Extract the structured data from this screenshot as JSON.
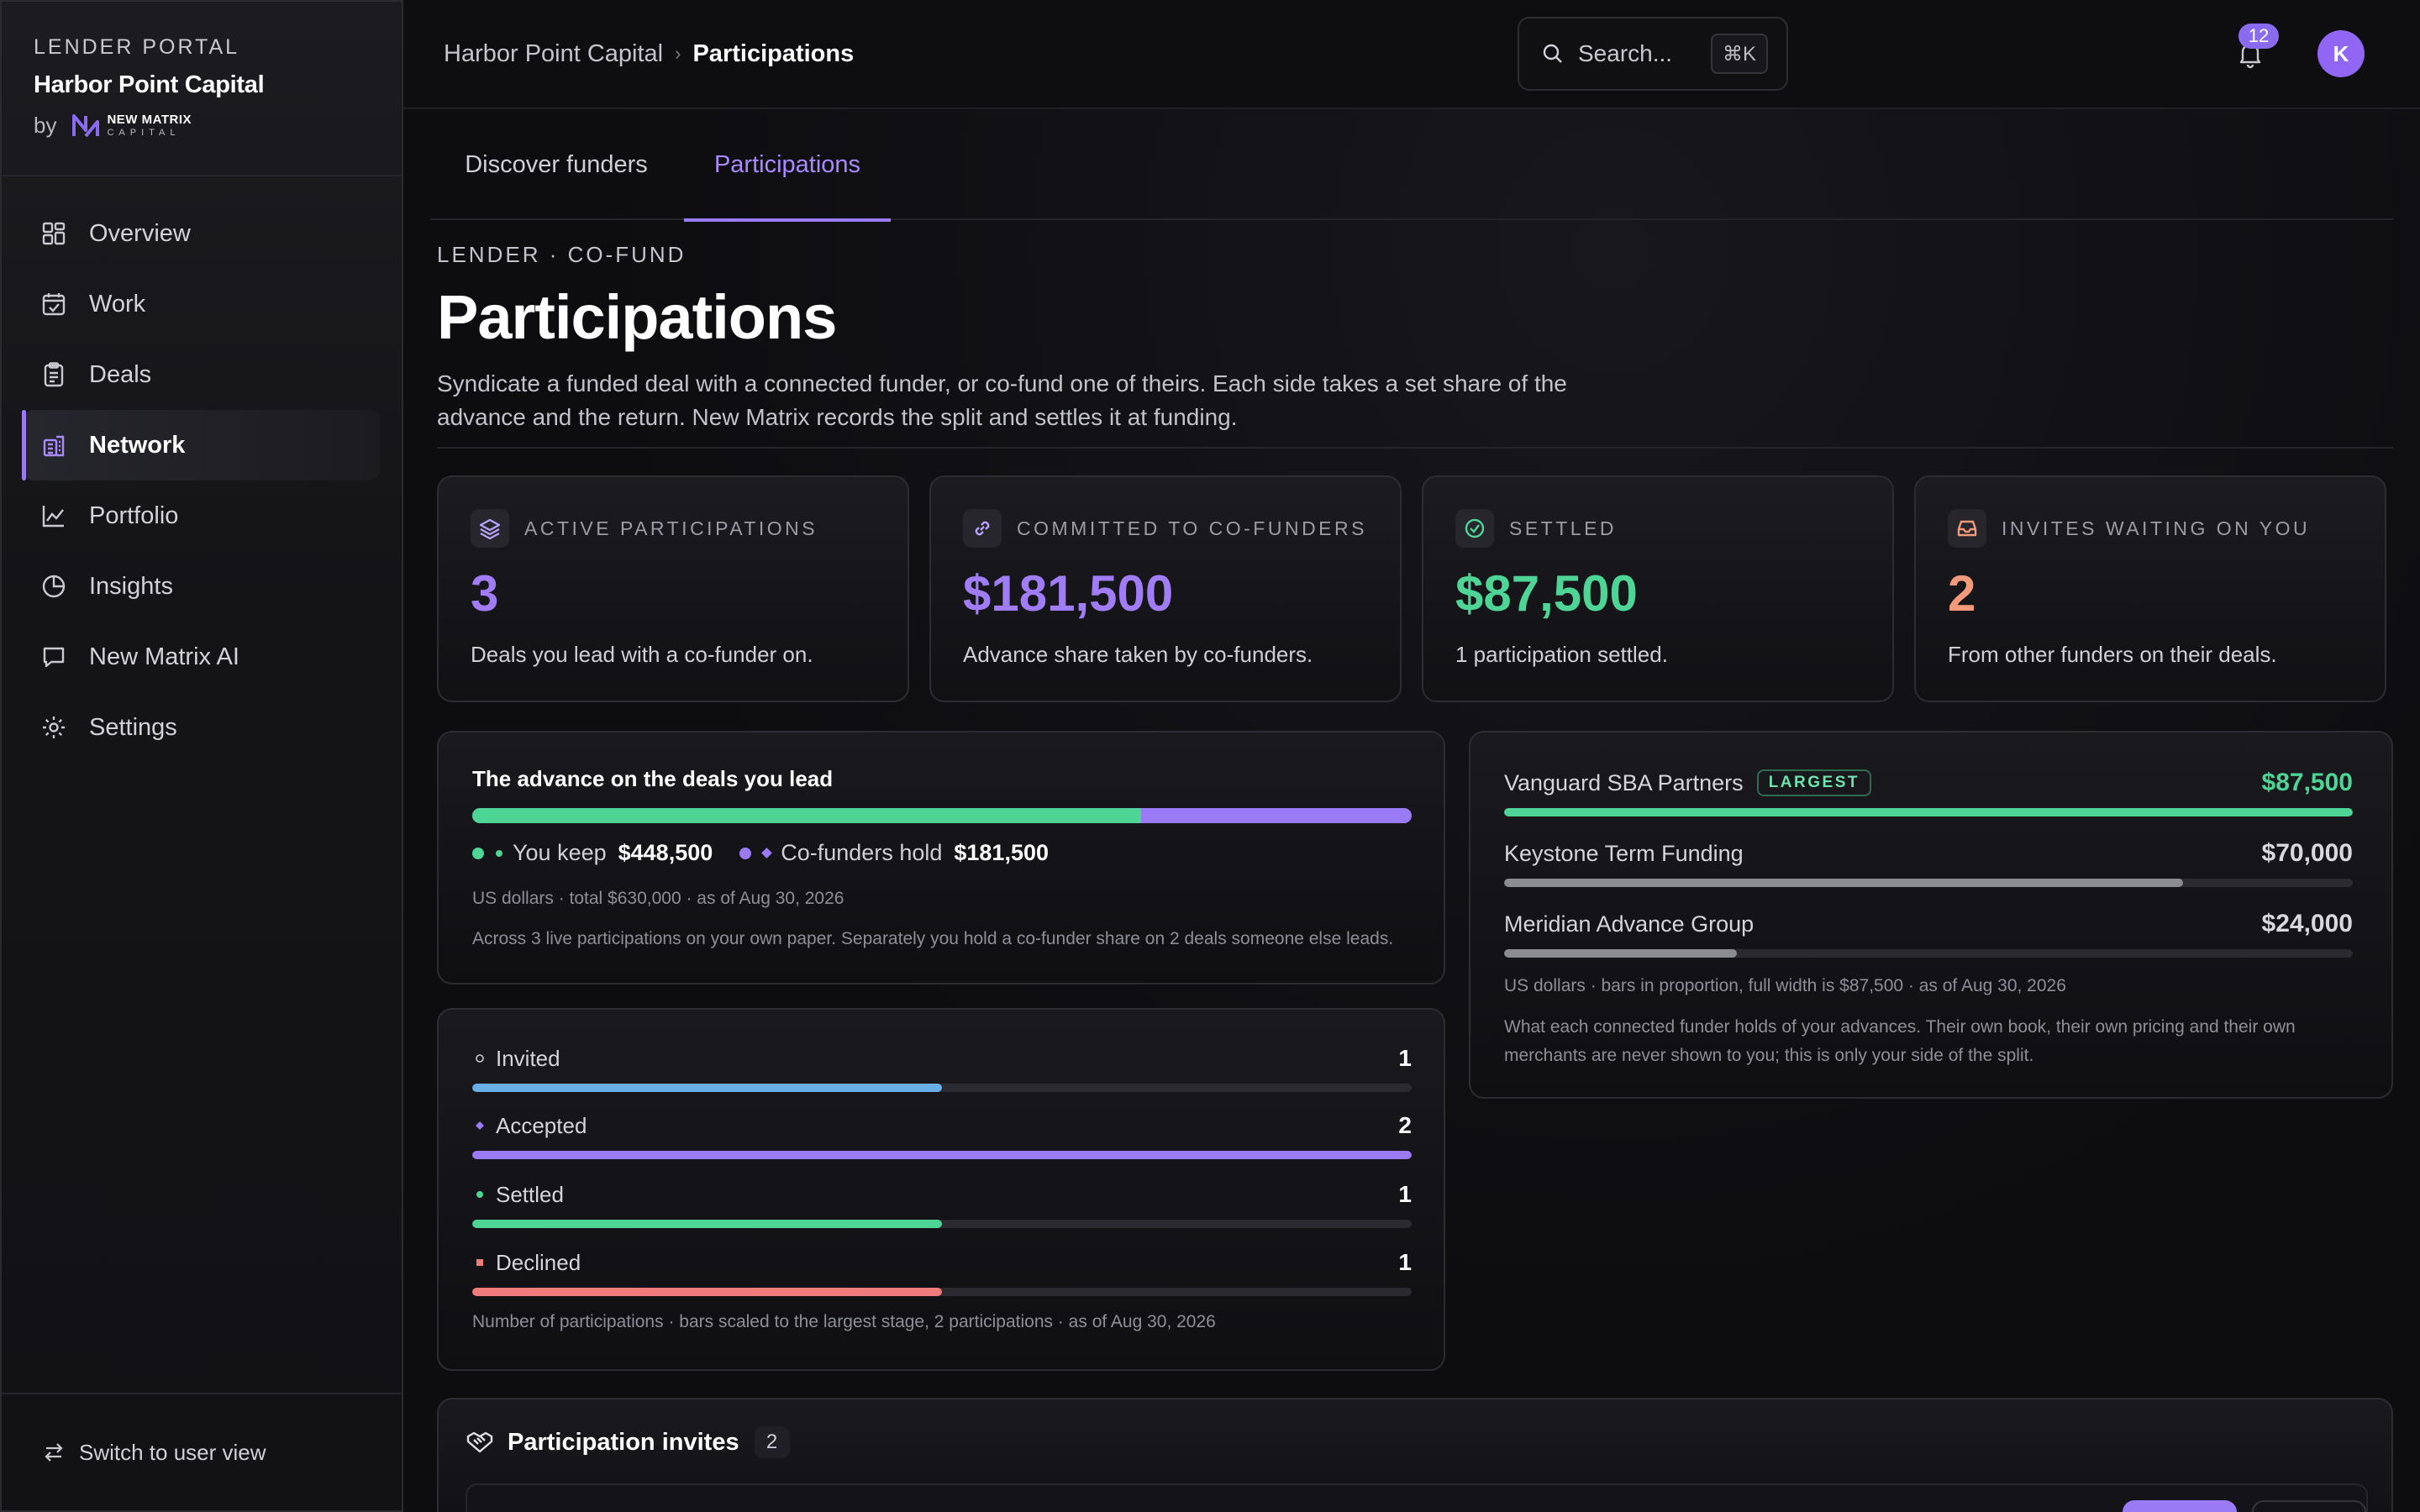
{
  "sidebar": {
    "eyebrow": "LENDER PORTAL",
    "company": "Harbor Point Capital",
    "by": "by",
    "partner_line1": "NEW MATRIX",
    "partner_line2": "CAPITAL",
    "items": [
      {
        "label": "Overview",
        "icon": "grid-icon"
      },
      {
        "label": "Work",
        "icon": "calendar-check-icon"
      },
      {
        "label": "Deals",
        "icon": "clipboard-icon"
      },
      {
        "label": "Network",
        "icon": "building-icon",
        "active": true
      },
      {
        "label": "Portfolio",
        "icon": "line-chart-icon"
      },
      {
        "label": "Insights",
        "icon": "pie-chart-icon"
      },
      {
        "label": "New Matrix AI",
        "icon": "chat-bubble-icon"
      },
      {
        "label": "Settings",
        "icon": "gear-icon"
      }
    ],
    "footer_label": "Switch to user view"
  },
  "topbar": {
    "breadcrumb": [
      "Harbor Point Capital",
      "Participations"
    ],
    "search_placeholder": "Search...",
    "search_shortcut": "⌘K",
    "notification_count": "12",
    "avatar_initial": "K"
  },
  "tabs": [
    {
      "label": "Discover funders"
    },
    {
      "label": "Participations",
      "active": true
    }
  ],
  "page": {
    "eyebrow": "LENDER · CO-FUND",
    "title": "Participations",
    "description": "Syndicate a funded deal with a connected funder, or co-fund one of theirs. Each side takes a set share of the advance and the return. New Matrix records the split and settles it at funding."
  },
  "stats": [
    {
      "label": "ACTIVE PARTICIPATIONS",
      "value": "3",
      "sub": "Deals you lead with a co-funder on.",
      "color": "#a07df7",
      "icon": "layers-icon"
    },
    {
      "label": "COMMITTED TO CO-FUNDERS",
      "value": "$181,500",
      "sub": "Advance share taken by co-funders.",
      "color": "#a07df7",
      "icon": "link-icon"
    },
    {
      "label": "SETTLED",
      "value": "$87,500",
      "sub": "1 participation settled.",
      "color": "#4ed495",
      "icon": "check-circle-icon"
    },
    {
      "label": "INVITES WAITING ON YOU",
      "value": "2",
      "sub": "From other funders on their deals.",
      "color": "#f39a7a",
      "icon": "inbox-icon"
    }
  ],
  "advance": {
    "title": "The advance on the deals you lead",
    "keep_label": "You keep",
    "keep_value": "$448,500",
    "keep_amount": 448500,
    "hold_label": "Co-funders hold",
    "hold_value": "$181,500",
    "hold_amount": 181500,
    "note1": "US dollars · total $630,000 · as of Aug 30, 2026",
    "note2": "Across 3 live participations on your own paper. Separately you hold a co-funder share on 2 deals someone else leads."
  },
  "stages": {
    "max": 2,
    "items": [
      {
        "label": "Invited",
        "count": 1,
        "color": "#6aaee8",
        "marker": "circle-outline"
      },
      {
        "label": "Accepted",
        "count": 2,
        "color": "#9b7af5",
        "marker": "diamond"
      },
      {
        "label": "Settled",
        "count": 1,
        "color": "#4ed495",
        "marker": "dot"
      },
      {
        "label": "Declined",
        "count": 1,
        "color": "#ef7b7b",
        "marker": "square"
      }
    ],
    "note": "Number of participations · bars scaled to the largest stage, 2 participations · as of Aug 30, 2026"
  },
  "funders": {
    "max": 87500,
    "items": [
      {
        "name": "Vanguard SBA Partners",
        "badge": "LARGEST",
        "value": "$87,500",
        "amount": 87500,
        "color": "#4ed495"
      },
      {
        "name": "Keystone Term Funding",
        "value": "$70,000",
        "amount": 70000,
        "color": "#8b8b92"
      },
      {
        "name": "Meridian Advance Group",
        "value": "$24,000",
        "amount": 24000,
        "color": "#8b8b92"
      }
    ],
    "note1": "US dollars · bars in proportion, full width is $87,500 · as of Aug 30, 2026",
    "note2": "What each connected funder holds of your advances. Their own book, their own pricing and their own merchants are never shown to you; this is only your side of the split."
  },
  "invites": {
    "title": "Participation invites",
    "count": "2"
  }
}
